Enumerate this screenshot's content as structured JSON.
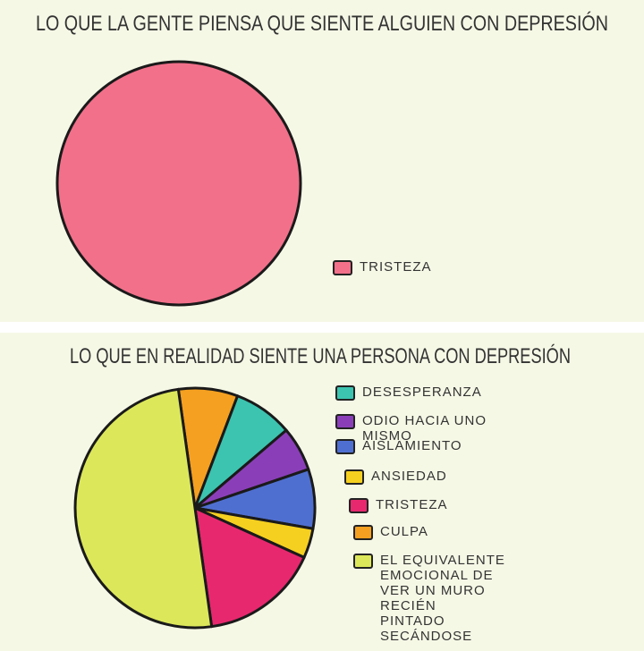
{
  "chart_data": [
    {
      "type": "pie",
      "title": "LO QUE LA GENTE PIENSA QUE SIENTE ALGUIEN CON DEPRESIÓN",
      "categories": [
        "TRISTEZA"
      ],
      "values": [
        100
      ],
      "colors": [
        "#f2708a"
      ]
    },
    {
      "type": "pie",
      "title": "LO QUE EN REALIDAD SIENTE UNA PERSONA CON DEPRESIÓN",
      "categories": [
        "DESESPERANZA",
        "ODIO HACIA UNO MISMO",
        "AISLAMIENTO",
        "ANSIEDAD",
        "TRISTEZA",
        "CULPA",
        "EL EQUIVALENTE EMOCIONAL DE VER UN MURO RECIÉN PINTADO SECÁNDOSE"
      ],
      "values": [
        8,
        6,
        8,
        4,
        16,
        8,
        50
      ],
      "colors": [
        "#3cc4b0",
        "#8a3fb8",
        "#4f6fd0",
        "#f5d020",
        "#e8286e",
        "#f5a020",
        "#dce85a"
      ]
    }
  ]
}
